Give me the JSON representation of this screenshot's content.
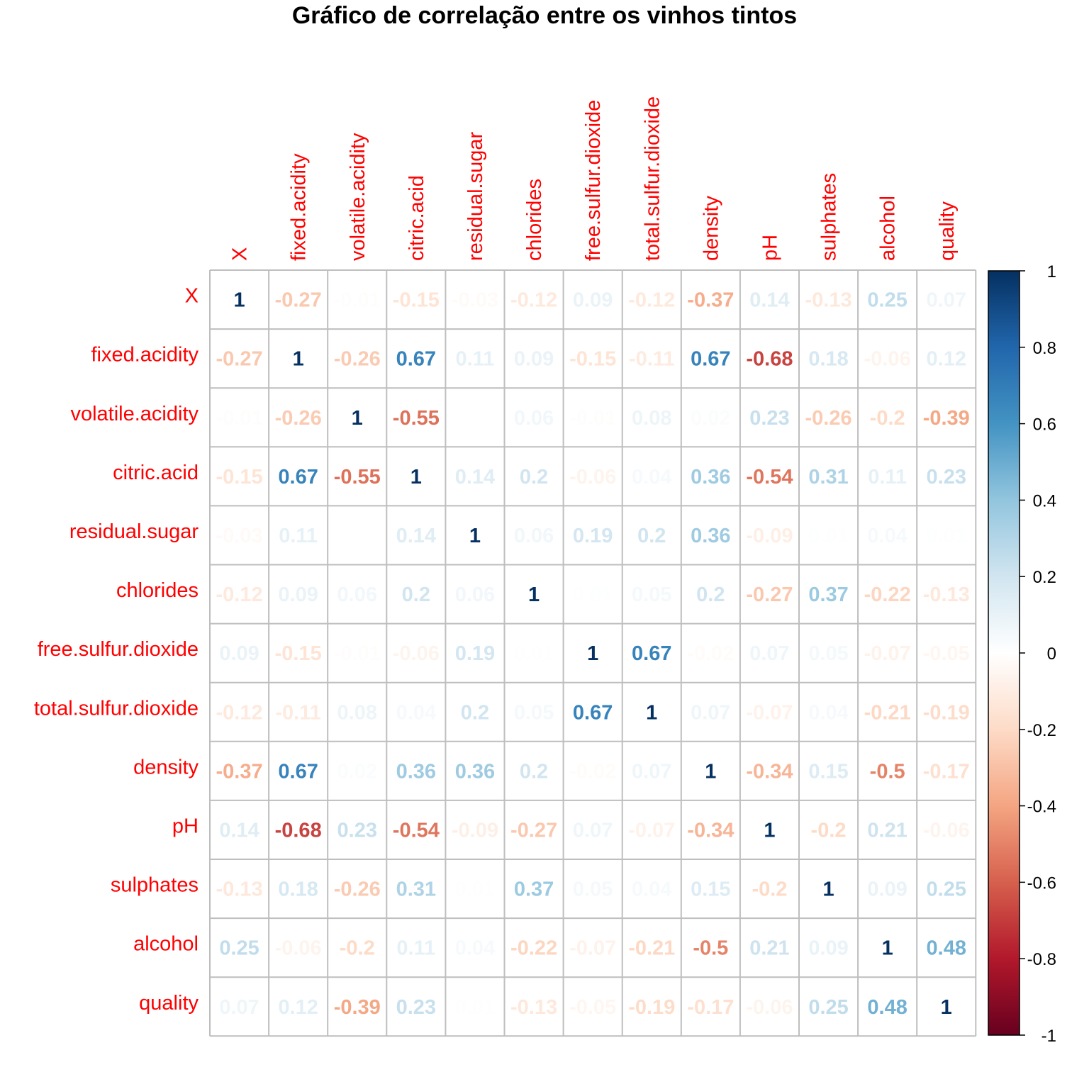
{
  "chart_data": {
    "type": "heatmap",
    "title": "Gráfico de correlação entre os vinhos tintos",
    "variables": [
      "X",
      "fixed.acidity",
      "volatile.acidity",
      "citric.acid",
      "residual.sugar",
      "chlorides",
      "free.sulfur.dioxide",
      "total.sulfur.dioxide",
      "density",
      "pH",
      "sulphates",
      "alcohol",
      "quality"
    ],
    "matrix": [
      [
        "1",
        "-0.27",
        "-0.01",
        "-0.15",
        "-0.03",
        "-0.12",
        "0.09",
        "-0.12",
        "-0.37",
        "0.14",
        "-0.13",
        "0.25",
        "0.07"
      ],
      [
        "-0.27",
        "1",
        "-0.26",
        "0.67",
        "0.11",
        "0.09",
        "-0.15",
        "-0.11",
        "0.67",
        "-0.68",
        "0.18",
        "-0.06",
        "0.12"
      ],
      [
        "-0.01",
        "-0.26",
        "1",
        "-0.55",
        "0",
        "0.06",
        "-0.01",
        "0.08",
        "0.02",
        "0.23",
        "-0.26",
        "-0.2",
        "-0.39"
      ],
      [
        "-0.15",
        "0.67",
        "-0.55",
        "1",
        "0.14",
        "0.2",
        "-0.06",
        "0.04",
        "0.36",
        "-0.54",
        "0.31",
        "0.11",
        "0.23"
      ],
      [
        "-0.03",
        "0.11",
        "0",
        "0.14",
        "1",
        "0.06",
        "0.19",
        "0.2",
        "0.36",
        "-0.09",
        "0.01",
        "0.04",
        "0.01"
      ],
      [
        "-0.12",
        "0.09",
        "0.06",
        "0.2",
        "0.06",
        "1",
        "0.01",
        "0.05",
        "0.2",
        "-0.27",
        "0.37",
        "-0.22",
        "-0.13"
      ],
      [
        "0.09",
        "-0.15",
        "-0.01",
        "-0.06",
        "0.19",
        "0.01",
        "1",
        "0.67",
        "-0.02",
        "0.07",
        "0.05",
        "-0.07",
        "-0.05"
      ],
      [
        "-0.12",
        "-0.11",
        "0.08",
        "0.04",
        "0.2",
        "0.05",
        "0.67",
        "1",
        "0.07",
        "-0.07",
        "0.04",
        "-0.21",
        "-0.19"
      ],
      [
        "-0.37",
        "0.67",
        "0.02",
        "0.36",
        "0.36",
        "0.2",
        "-0.02",
        "0.07",
        "1",
        "-0.34",
        "0.15",
        "-0.5",
        "-0.17"
      ],
      [
        "0.14",
        "-0.68",
        "0.23",
        "-0.54",
        "-0.09",
        "-0.27",
        "0.07",
        "-0.07",
        "-0.34",
        "1",
        "-0.2",
        "0.21",
        "-0.06"
      ],
      [
        "-0.13",
        "0.18",
        "-0.26",
        "0.31",
        "0.01",
        "0.37",
        "0.05",
        "0.04",
        "0.15",
        "-0.2",
        "1",
        "0.09",
        "0.25"
      ],
      [
        "0.25",
        "-0.06",
        "-0.2",
        "0.11",
        "0.04",
        "-0.22",
        "-0.07",
        "-0.21",
        "-0.5",
        "0.21",
        "0.09",
        "1",
        "0.48"
      ],
      [
        "0.07",
        "0.12",
        "-0.39",
        "0.23",
        "0.01",
        "-0.13",
        "-0.05",
        "-0.19",
        "-0.17",
        "-0.06",
        "0.25",
        "0.48",
        "1"
      ]
    ],
    "colorbar": {
      "range": [
        -1,
        1
      ],
      "ticks": [
        "1",
        "0.8",
        "0.6",
        "0.4",
        "0.2",
        "0",
        "-0.2",
        "-0.4",
        "-0.6",
        "-0.8",
        "-1"
      ]
    },
    "colors": {
      "negative_strong": "#67001f",
      "negative_mid": "#d6604d",
      "neutral": "#ffffff",
      "positive_mid": "#4393c3",
      "positive_strong": "#053061",
      "label_color": "#ff0000",
      "grid_color": "#bebebe"
    }
  }
}
